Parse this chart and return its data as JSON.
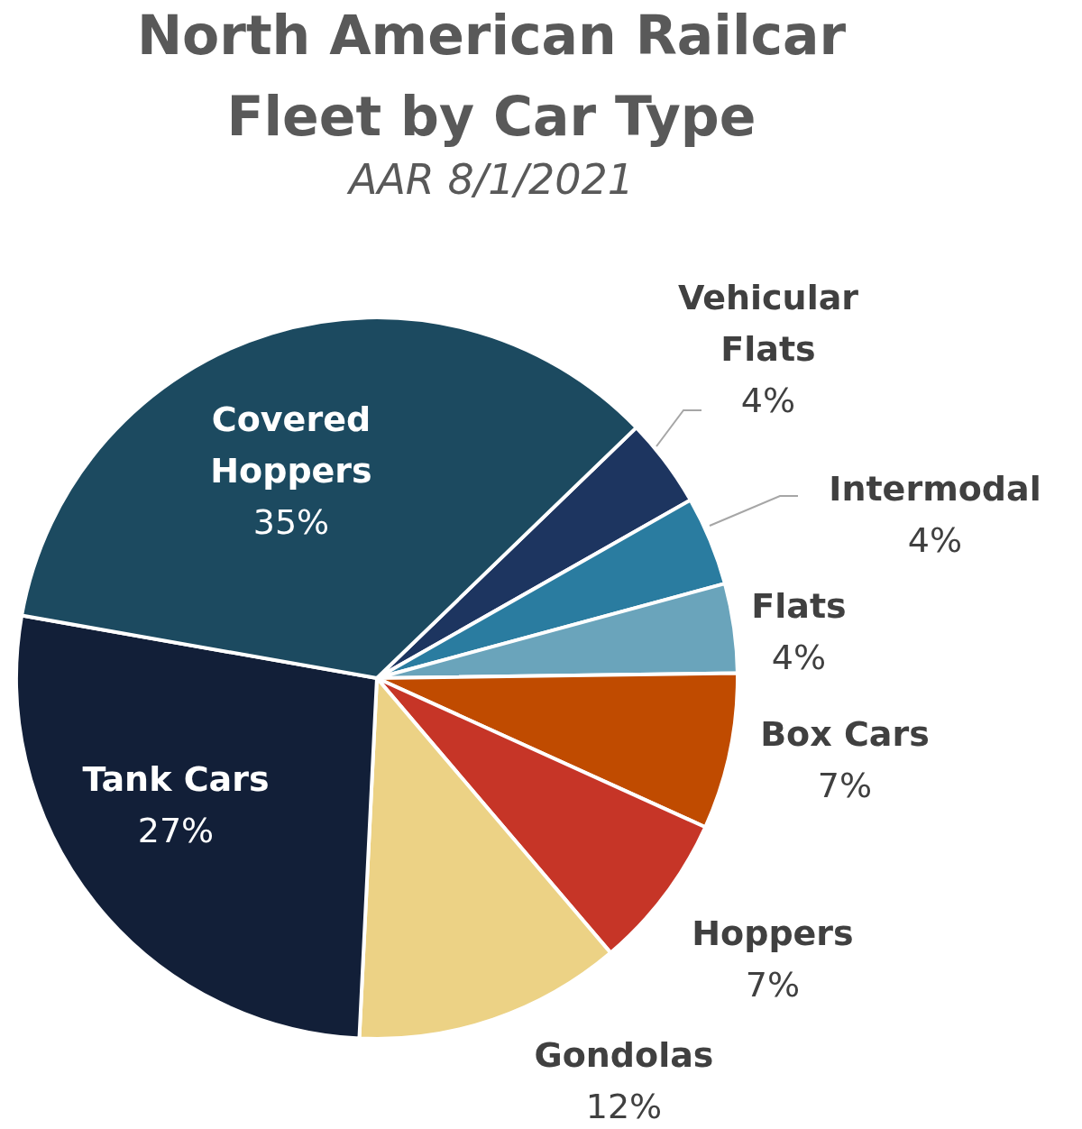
{
  "chart_data": {
    "type": "pie",
    "title": "North American Railcar Fleet by Car Type",
    "subtitle": "AAR 8/1/2021",
    "categories": [
      "Vehicular Flats",
      "Intermodal",
      "Flats",
      "Box Cars",
      "Hoppers",
      "Gondolas",
      "Tank Cars",
      "Covered Hoppers"
    ],
    "values": [
      4,
      4,
      4,
      7,
      7,
      12,
      27,
      35
    ],
    "colors": [
      "#1d3560",
      "#2a7ca0",
      "#6aa4bb",
      "#c04b00",
      "#c63527",
      "#ecd285",
      "#121f38",
      "#1c4a60"
    ],
    "value_labels": [
      "4%",
      "4%",
      "4%",
      "7%",
      "7%",
      "12%",
      "27%",
      "35%"
    ]
  }
}
